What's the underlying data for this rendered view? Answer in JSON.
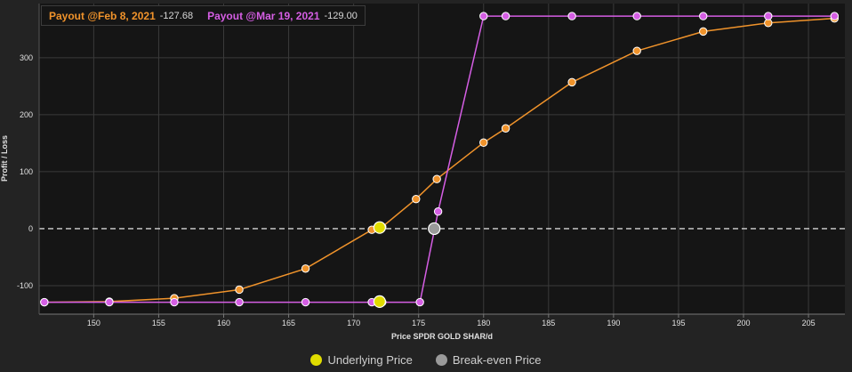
{
  "header": {
    "series": [
      {
        "label": "Payout @Feb 8, 2021",
        "value": "-127.68",
        "color": "#f0932b"
      },
      {
        "label": "Payout @Mar 19, 2021",
        "value": "-129.00",
        "color": "#d55ee4"
      }
    ]
  },
  "footer": {
    "items": [
      {
        "label": "Underlying Price",
        "color": "#e0dc00"
      },
      {
        "label": "Break-even Price",
        "color": "#9a9a9a"
      }
    ]
  },
  "colors": {
    "background": "#232323",
    "plot_background": "#151515",
    "grid": "#3a3a3a",
    "zero_line": "#ffffff"
  },
  "chart_data": {
    "type": "line",
    "xlabel": "Price SPDR GOLD SHAR/d",
    "ylabel": "Profit / Loss",
    "xlim": [
      145.8,
      207.8
    ],
    "ylim": [
      -150,
      395
    ],
    "x_ticks": [
      150,
      155,
      160,
      165,
      170,
      175,
      180,
      185,
      190,
      195,
      200,
      205
    ],
    "y_ticks": [
      -100,
      0,
      100,
      200,
      300
    ],
    "grid": true,
    "zero_line": {
      "y": 0,
      "style": "dashed"
    },
    "series": [
      {
        "name": "Payout @Feb 8, 2021",
        "color": "#f0932b",
        "x": [
          146.2,
          151.2,
          156.2,
          161.2,
          166.3,
          171.4,
          172.2,
          174.8,
          176.4,
          180.0,
          181.7,
          186.8,
          191.8,
          196.9,
          201.9,
          207.0
        ],
        "y": [
          -129,
          -128,
          -122,
          -107,
          -70,
          -2,
          3,
          52,
          87,
          151,
          176,
          257,
          312,
          346,
          361,
          369
        ]
      },
      {
        "name": "Payout @Mar 19, 2021",
        "color": "#d55ee4",
        "x": [
          146.2,
          151.2,
          156.2,
          161.2,
          166.3,
          171.4,
          172.2,
          175.1,
          176.5,
          180.0,
          181.7,
          186.8,
          191.8,
          196.9,
          201.9,
          207.0
        ],
        "y": [
          -129,
          -129,
          -129,
          -129,
          -129,
          -129,
          -129,
          -129,
          30,
          373,
          373,
          373,
          373,
          373,
          373,
          373
        ]
      }
    ],
    "markers": [
      {
        "name": "Underlying Price",
        "color": "#e0dc00",
        "points": [
          {
            "x": 172.0,
            "y": 2
          },
          {
            "x": 172.0,
            "y": -128
          }
        ]
      },
      {
        "name": "Break-even Price",
        "color": "#9a9a9a",
        "points": [
          {
            "x": 176.2,
            "y": 0
          }
        ]
      }
    ]
  }
}
